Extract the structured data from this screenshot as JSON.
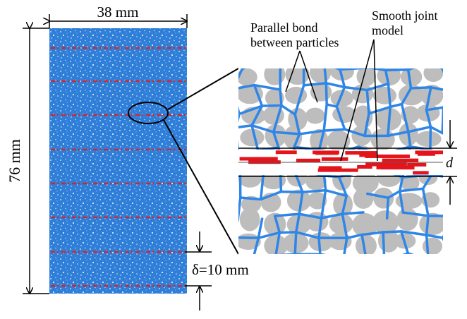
{
  "labels": {
    "width": "38 mm",
    "height": "76 mm",
    "bond": [
      "Parallel bond",
      "between particles"
    ],
    "joint": [
      "Smooth joint",
      "model"
    ],
    "gap": "d",
    "spacing": "δ=10 mm"
  }
}
